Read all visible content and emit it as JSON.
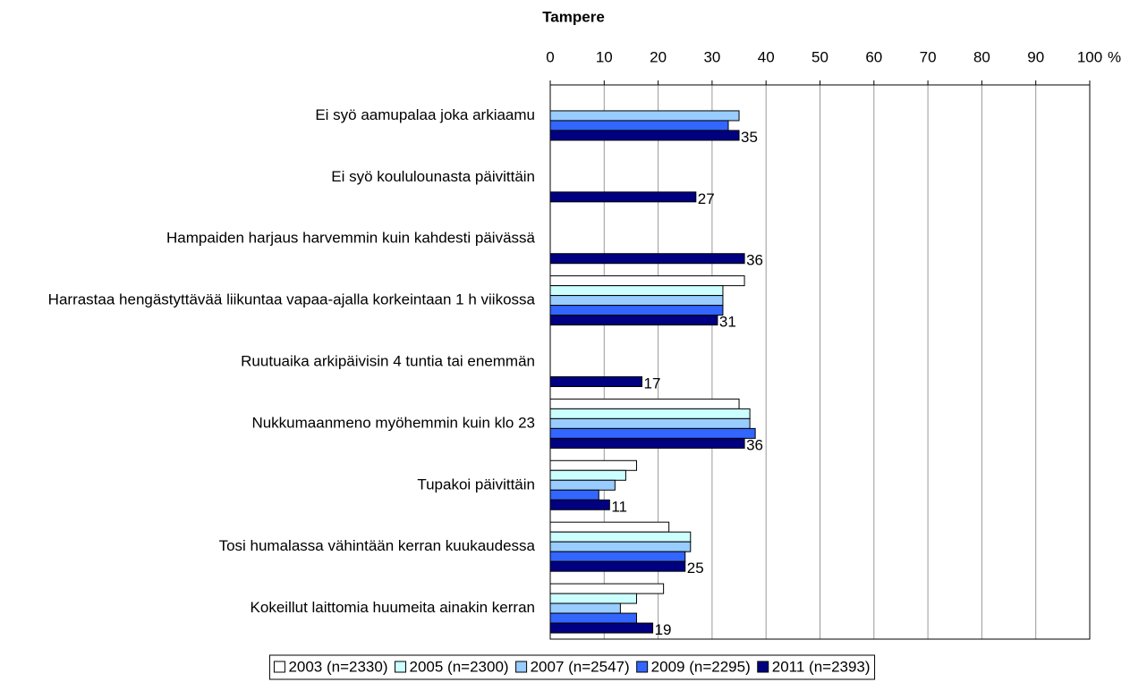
{
  "chart_data": {
    "type": "barh",
    "title": "Tampere",
    "xlabel": "%",
    "categories": [
      "Ei syö aamupalaa joka arkiaamu",
      "Ei syö koululounasta päivittäin",
      "Hampaiden harjaus harvemmin kuin kahdesti päivässä",
      "Harrastaa hengästyttävää liikuntaa vapaa-ajalla korkeintaan 1 h viikossa",
      "Ruutuaika arkipäivisin 4 tuntia tai enemmän",
      "Nukkumaanmeno myöhemmin kuin klo 23",
      "Tupakoi päivittäin",
      "Tosi humalassa vähintään kerran kuukaudessa",
      "Kokeillut laittomia huumeita ainakin kerran"
    ],
    "series": [
      {
        "name": "2003 (n=2330)",
        "color": "#ffffff",
        "values": [
          null,
          null,
          null,
          36,
          null,
          35,
          16,
          22,
          21
        ]
      },
      {
        "name": "2005 (n=2300)",
        "color": "#ccffff",
        "values": [
          null,
          null,
          null,
          32,
          null,
          37,
          14,
          26,
          16
        ]
      },
      {
        "name": "2007 (n=2547)",
        "color": "#99ccff",
        "values": [
          35,
          null,
          null,
          32,
          null,
          37,
          12,
          26,
          13
        ]
      },
      {
        "name": "2009 (n=2295)",
        "color": "#3366ff",
        "values": [
          33,
          null,
          null,
          32,
          null,
          38,
          9,
          25,
          16
        ]
      },
      {
        "name": "2011 (n=2393)",
        "color": "#000080",
        "values": [
          35,
          27,
          36,
          31,
          17,
          36,
          11,
          25,
          19
        ],
        "data_labels": true
      }
    ],
    "xlim": [
      0,
      100
    ],
    "xticks": [
      0,
      10,
      20,
      30,
      40,
      50,
      60,
      70,
      80,
      90,
      100
    ],
    "grid": true,
    "legend": "bottom"
  }
}
